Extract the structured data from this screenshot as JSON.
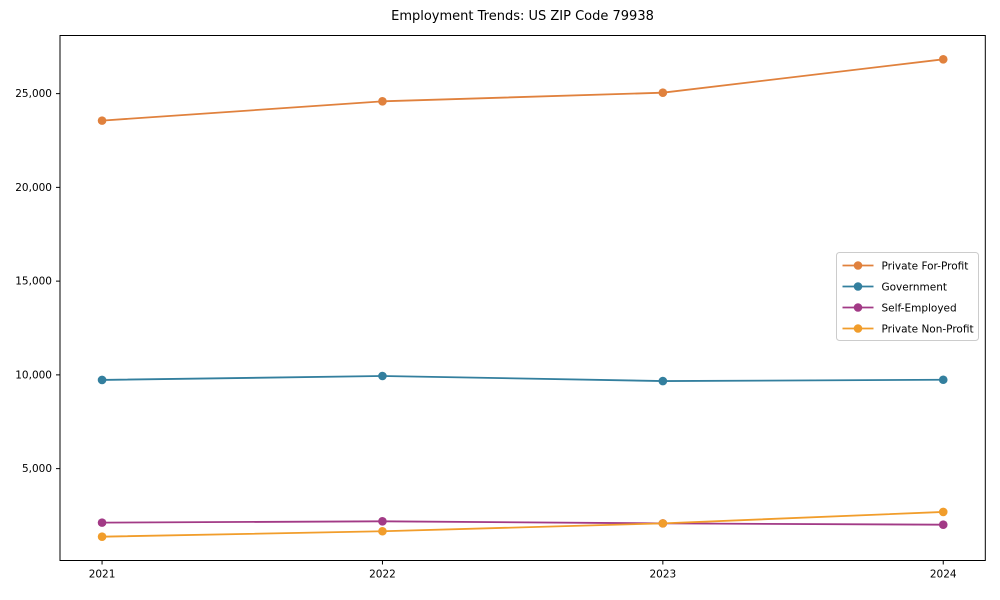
{
  "figure": {
    "title": "Employment Trends: US ZIP Code 79938"
  },
  "chart_data": {
    "type": "line",
    "title": "Employment Trends: US ZIP Code 79938",
    "x": [
      "2021",
      "2022",
      "2023",
      "2024"
    ],
    "series": [
      {
        "name": "Private For-Profit",
        "color": "#e0813d",
        "values": [
          23560,
          24590,
          25050,
          26830
        ]
      },
      {
        "name": "Government",
        "color": "#337f9e",
        "values": [
          9730,
          9940,
          9670,
          9740
        ]
      },
      {
        "name": "Self-Employed",
        "color": "#a23a86",
        "values": [
          2120,
          2190,
          2080,
          2010
        ]
      },
      {
        "name": "Private Non-Profit",
        "color": "#f19d2b",
        "values": [
          1370,
          1660,
          2080,
          2690
        ]
      }
    ],
    "xlabel": "",
    "ylabel": "",
    "ylim": [
      100,
      28100
    ],
    "yticks": [
      5000,
      10000,
      15000,
      20000,
      25000
    ],
    "ytick_labels": [
      "5,000",
      "10,000",
      "15,000",
      "20,000",
      "25,000"
    ],
    "grid": false,
    "legend_position": "center right",
    "axis_color": "#000000",
    "text_color": "#000000",
    "legend_border_color": "#cccccc",
    "background": "#ffffff"
  }
}
